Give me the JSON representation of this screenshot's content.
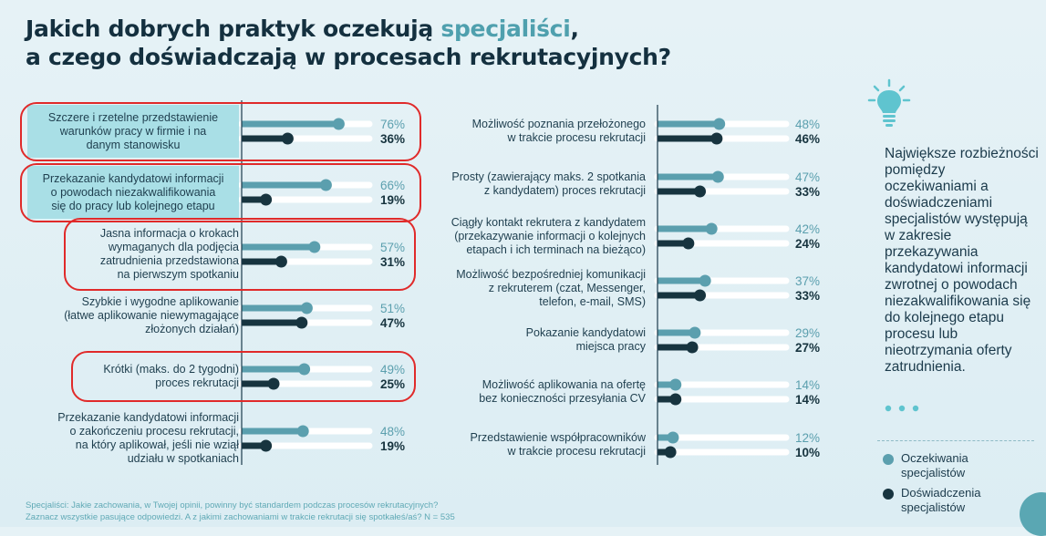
{
  "title": {
    "line1_pre": "Jakich dobrych praktyk oczekują ",
    "line1_accent": "specjaliści",
    "line1_post": ",",
    "line2": "a czego doświadczają w procesach rekrutacyjnych?"
  },
  "colors": {
    "expectations": "#5b9fae",
    "experiences": "#17343f",
    "track": "#ffffff",
    "highlight_fill": "#a9dfe6",
    "highlight_border": "#e02a2a",
    "accent": "#4fa0ae"
  },
  "chart_data": [
    {
      "type": "bar",
      "orientation": "horizontal",
      "value_format": "percent",
      "xlim": [
        0,
        100
      ],
      "series": [
        {
          "name": "Oczekiwania specjalistów",
          "values": [
            76,
            66,
            57,
            51,
            49,
            48
          ]
        },
        {
          "name": "Doświadczenia specjalistów",
          "values": [
            36,
            19,
            31,
            47,
            25,
            19
          ]
        }
      ],
      "categories": [
        {
          "lines": [
            "Szczere i rzetelne przedstawienie",
            "warunków pracy w firmie i na",
            "danym stanowisku"
          ],
          "highlight": true,
          "circled": true
        },
        {
          "lines": [
            "Przekazanie kandydatowi informacji",
            "o powodach niezakwalifikowania",
            "się do pracy lub kolejnego etapu"
          ],
          "highlight": true,
          "circled": true
        },
        {
          "lines": [
            "Jasna informacja o krokach",
            "wymaganych dla podjęcia",
            "zatrudnienia przedstawiona",
            "na pierwszym spotkaniu"
          ],
          "highlight": false,
          "circled": true
        },
        {
          "lines": [
            "Szybkie i wygodne aplikowanie",
            "(łatwe aplikowanie niewymagające",
            "złożonych działań)"
          ],
          "highlight": false,
          "circled": false
        },
        {
          "lines": [
            "Krótki (maks. do 2 tygodni)",
            "proces rekrutacji"
          ],
          "highlight": false,
          "circled": true
        },
        {
          "lines": [
            "Przekazanie kandydatowi informacji",
            "o zakończeniu procesu rekrutacji,",
            "na który aplikował, jeśli nie wziął",
            "udziału w spotkaniach"
          ],
          "highlight": false,
          "circled": false
        }
      ]
    },
    {
      "type": "bar",
      "orientation": "horizontal",
      "value_format": "percent",
      "xlim": [
        0,
        100
      ],
      "series": [
        {
          "name": "Oczekiwania specjalistów",
          "values": [
            48,
            47,
            42,
            37,
            29,
            14,
            12
          ]
        },
        {
          "name": "Doświadczenia specjalistów",
          "values": [
            46,
            33,
            24,
            33,
            27,
            14,
            10
          ]
        }
      ],
      "categories": [
        {
          "lines": [
            "Możliwość poznania przełożonego",
            "w trakcie procesu rekrutacji"
          ],
          "highlight": false,
          "circled": false
        },
        {
          "lines": [
            "Prosty (zawierający maks. 2 spotkania",
            "z kandydatem) proces rekrutacji"
          ],
          "highlight": false,
          "circled": false
        },
        {
          "lines": [
            "Ciągły kontakt rekrutera z kandydatem",
            "(przekazywanie informacji o kolejnych",
            "etapach i ich terminach na bieżąco)"
          ],
          "highlight": false,
          "circled": false
        },
        {
          "lines": [
            "Możliwość bezpośredniej komunikacji",
            "z rekruterem (czat, Messenger,",
            "telefon, e-mail, SMS)"
          ],
          "highlight": false,
          "circled": false
        },
        {
          "lines": [
            "Pokazanie kandydatowi",
            "miejsca pracy"
          ],
          "highlight": false,
          "circled": false
        },
        {
          "lines": [
            "Możliwość aplikowania na ofertę",
            "bez konieczności przesyłania CV"
          ],
          "highlight": false,
          "circled": false
        },
        {
          "lines": [
            "Przedstawienie współpracowników",
            "w trakcie procesu rekrutacji"
          ],
          "highlight": false,
          "circled": false
        }
      ]
    }
  ],
  "side_panel": {
    "icon": "lightbulb-icon",
    "text": "Największe rozbieżności pomiędzy oczekiwaniami a doświadczeniami specjalistów występują w zakresie przekazywania kandydatowi informacji zwrotnej o powodach niezakwalifikowania się do kolejnego etapu procesu lub nieotrzymania oferty zatrudnienia.",
    "legend": [
      {
        "label": "Oczekiwania specjalistów"
      },
      {
        "label": "Doświadczenia specjalistów"
      }
    ]
  },
  "footnote": {
    "line1": "Specjaliści: Jakie zachowania, w Twojej opinii, powinny być standardem podczas procesów rekrutacyjnych?",
    "line2": "Zaznacz wszystkie pasujące odpowiedzi. A z jakimi zachowaniami w trakcie rekrutacji się spotkałeś/aś? N = 535"
  }
}
